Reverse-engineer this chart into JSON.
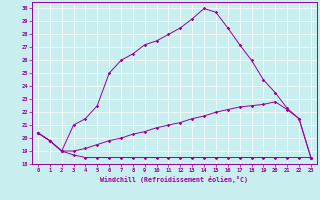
{
  "xlabel": "Windchill (Refroidissement éolien,°C)",
  "bg_color": "#c8eef0",
  "line_color": "#990099",
  "grid_color": "#ffffff",
  "xlim": [
    -0.5,
    23.5
  ],
  "ylim": [
    18,
    30.5
  ],
  "xticks": [
    0,
    1,
    2,
    3,
    4,
    5,
    6,
    7,
    8,
    9,
    10,
    11,
    12,
    13,
    14,
    15,
    16,
    17,
    18,
    19,
    20,
    21,
    22,
    23
  ],
  "yticks": [
    18,
    19,
    20,
    21,
    22,
    23,
    24,
    25,
    26,
    27,
    28,
    29,
    30
  ],
  "curve_flat_x": [
    0,
    1,
    2,
    3,
    4,
    5,
    6,
    7,
    8,
    9,
    10,
    11,
    12,
    13,
    14,
    15,
    16,
    17,
    18,
    19,
    20,
    21,
    22,
    23
  ],
  "curve_flat_y": [
    20.4,
    19.8,
    19.0,
    18.7,
    18.5,
    18.5,
    18.5,
    18.5,
    18.5,
    18.5,
    18.5,
    18.5,
    18.5,
    18.5,
    18.5,
    18.5,
    18.5,
    18.5,
    18.5,
    18.5,
    18.5,
    18.5,
    18.5,
    18.5
  ],
  "curve_mid_x": [
    0,
    1,
    2,
    3,
    4,
    5,
    6,
    7,
    8,
    9,
    10,
    11,
    12,
    13,
    14,
    15,
    16,
    17,
    18,
    19,
    20,
    21,
    22,
    23
  ],
  "curve_mid_y": [
    20.4,
    19.8,
    19.0,
    19.0,
    19.2,
    19.5,
    19.8,
    20.0,
    20.3,
    20.5,
    20.8,
    21.0,
    21.2,
    21.5,
    21.7,
    22.0,
    22.2,
    22.4,
    22.5,
    22.6,
    22.8,
    22.2,
    21.5,
    18.5
  ],
  "curve_top_x": [
    0,
    1,
    2,
    3,
    4,
    5,
    6,
    7,
    8,
    9,
    10,
    11,
    12,
    13,
    14,
    15,
    16,
    17,
    18,
    19,
    20,
    21,
    22,
    23
  ],
  "curve_top_y": [
    20.4,
    19.8,
    19.0,
    21.0,
    21.5,
    22.5,
    25.0,
    26.0,
    26.5,
    27.2,
    27.5,
    28.0,
    28.5,
    29.2,
    30.0,
    29.7,
    28.5,
    27.2,
    26.0,
    24.5,
    23.5,
    22.3,
    21.5,
    18.5
  ]
}
